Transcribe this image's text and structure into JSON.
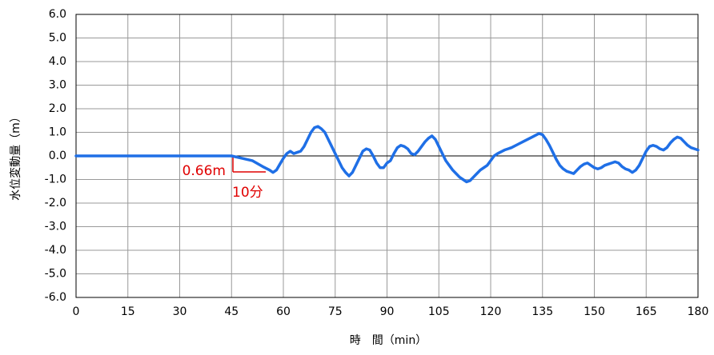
{
  "chart_data": {
    "type": "line",
    "xlabel": "時　間（min）",
    "ylabel": "水位変動量（m）",
    "color": "#1f6fe6",
    "grid": true,
    "xlim": [
      0,
      180
    ],
    "xticks": [
      0,
      15,
      30,
      45,
      60,
      75,
      90,
      105,
      120,
      135,
      150,
      165,
      180
    ],
    "ylim": [
      -6,
      6
    ],
    "yticks": [
      {
        "value": -6,
        "label": "-6.0"
      },
      {
        "value": -5,
        "label": "-5.0"
      },
      {
        "value": -4,
        "label": "-4.0"
      },
      {
        "value": -3,
        "label": "-3.0"
      },
      {
        "value": -2,
        "label": "-2.0"
      },
      {
        "value": -1,
        "label": "-1.0"
      },
      {
        "value": 0,
        "label": "0.0"
      },
      {
        "value": 1,
        "label": "1.0"
      },
      {
        "value": 2,
        "label": "2.0"
      },
      {
        "value": 3,
        "label": "3.0"
      },
      {
        "value": 4,
        "label": "4.0"
      },
      {
        "value": 5,
        "label": "5.0"
      },
      {
        "value": 6,
        "label": "6.0"
      }
    ],
    "annotations": [
      "0.66m",
      "10分"
    ],
    "x": [
      0,
      45,
      48,
      51,
      54,
      56,
      57,
      58,
      59,
      60,
      61,
      62,
      63,
      64,
      65,
      66,
      67,
      68,
      69,
      70,
      71,
      72,
      73,
      74,
      75,
      76,
      77,
      78,
      79,
      80,
      81,
      82,
      83,
      84,
      85,
      86,
      87,
      88,
      89,
      90,
      91,
      92,
      93,
      94,
      95,
      96,
      97,
      98,
      99,
      100,
      101,
      102,
      103,
      104,
      105,
      106,
      107,
      108,
      109,
      110,
      111,
      112,
      113,
      114,
      115,
      116,
      117,
      118,
      119,
      120,
      121,
      122,
      124,
      126,
      128,
      130,
      132,
      134,
      135,
      136,
      137,
      138,
      139,
      140,
      141,
      142,
      143,
      144,
      145,
      146,
      147,
      148,
      149,
      150,
      151,
      152,
      153,
      154,
      155,
      156,
      157,
      158,
      159,
      160,
      161,
      162,
      163,
      164,
      165,
      166,
      167,
      168,
      169,
      170,
      171,
      172,
      173,
      174,
      175,
      176,
      177,
      178,
      179,
      180
    ],
    "values": [
      0,
      0,
      -0.1,
      -0.2,
      -0.45,
      -0.6,
      -0.7,
      -0.6,
      -0.35,
      -0.1,
      0.1,
      0.2,
      0.1,
      0.15,
      0.2,
      0.4,
      0.7,
      1.0,
      1.2,
      1.25,
      1.15,
      1.0,
      0.7,
      0.4,
      0.1,
      -0.2,
      -0.5,
      -0.7,
      -0.85,
      -0.7,
      -0.4,
      -0.1,
      0.2,
      0.3,
      0.25,
      0.0,
      -0.3,
      -0.5,
      -0.5,
      -0.3,
      -0.2,
      0.1,
      0.35,
      0.45,
      0.4,
      0.3,
      0.1,
      0.05,
      0.2,
      0.4,
      0.6,
      0.75,
      0.85,
      0.7,
      0.4,
      0.1,
      -0.2,
      -0.4,
      -0.6,
      -0.75,
      -0.9,
      -1.0,
      -1.1,
      -1.05,
      -0.9,
      -0.75,
      -0.6,
      -0.5,
      -0.4,
      -0.2,
      0.0,
      0.1,
      0.25,
      0.35,
      0.5,
      0.65,
      0.8,
      0.95,
      0.9,
      0.7,
      0.45,
      0.15,
      -0.15,
      -0.4,
      -0.55,
      -0.65,
      -0.7,
      -0.75,
      -0.6,
      -0.45,
      -0.35,
      -0.3,
      -0.4,
      -0.5,
      -0.55,
      -0.5,
      -0.4,
      -0.35,
      -0.3,
      -0.25,
      -0.3,
      -0.45,
      -0.55,
      -0.6,
      -0.7,
      -0.6,
      -0.4,
      -0.1,
      0.2,
      0.4,
      0.45,
      0.4,
      0.3,
      0.25,
      0.35,
      0.55,
      0.7,
      0.8,
      0.75,
      0.6,
      0.45,
      0.35,
      0.3,
      0.25
    ]
  }
}
